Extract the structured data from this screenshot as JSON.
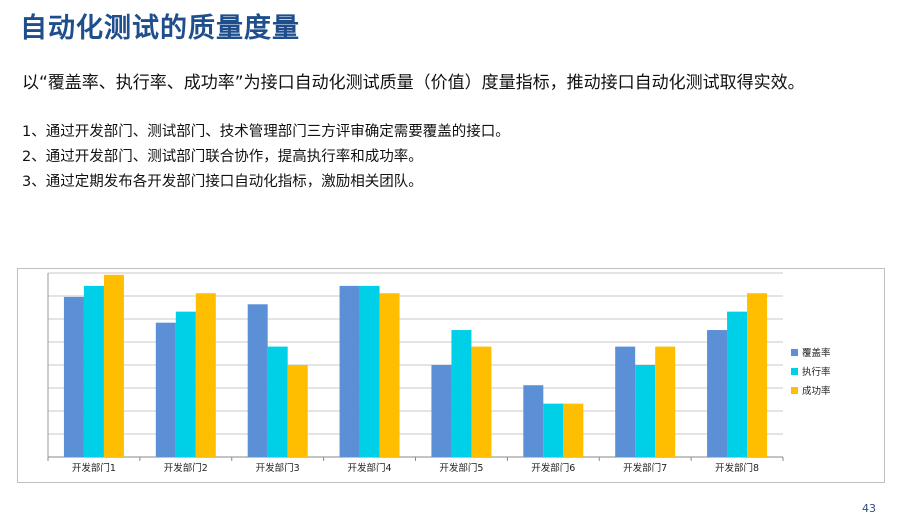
{
  "slide": {
    "title": "自动化测试的质量度量",
    "lead": "以“覆盖率、执行率、成功率”为接口自动化测试质量（价值）度量指标，推动接口自动化测试取得实效。",
    "points": [
      "1、通过开发部门、测试部门、技术管理部门三方评审确定需要覆盖的接口。",
      "2、通过开发部门、测试部门联合协作，提高执行率和成功率。",
      "3、通过定期发布各开发部门接口自动化指标，激励相关团队。"
    ],
    "page_number": "43"
  },
  "chart_data": {
    "type": "bar",
    "categories": [
      "开发部门1",
      "开发部门2",
      "开发部门3",
      "开发部门4",
      "开发部门5",
      "开发部门6",
      "开发部门7",
      "开发部门8"
    ],
    "series": [
      {
        "name": "覆盖率",
        "color": "#5b8fd6",
        "values": [
          8.7,
          7.3,
          8.3,
          9.3,
          5.0,
          3.9,
          6.0,
          6.9
        ]
      },
      {
        "name": "执行率",
        "color": "#00cfe8",
        "values": [
          9.3,
          7.9,
          6.0,
          9.3,
          6.9,
          2.9,
          5.0,
          7.9
        ]
      },
      {
        "name": "成功率",
        "color": "#ffbf00",
        "values": [
          9.9,
          8.9,
          5.0,
          8.9,
          6.0,
          2.9,
          6.0,
          8.9
        ]
      }
    ],
    "ylim": [
      0,
      10
    ],
    "gridlines": 8,
    "grid": true,
    "legend_position": "right"
  }
}
